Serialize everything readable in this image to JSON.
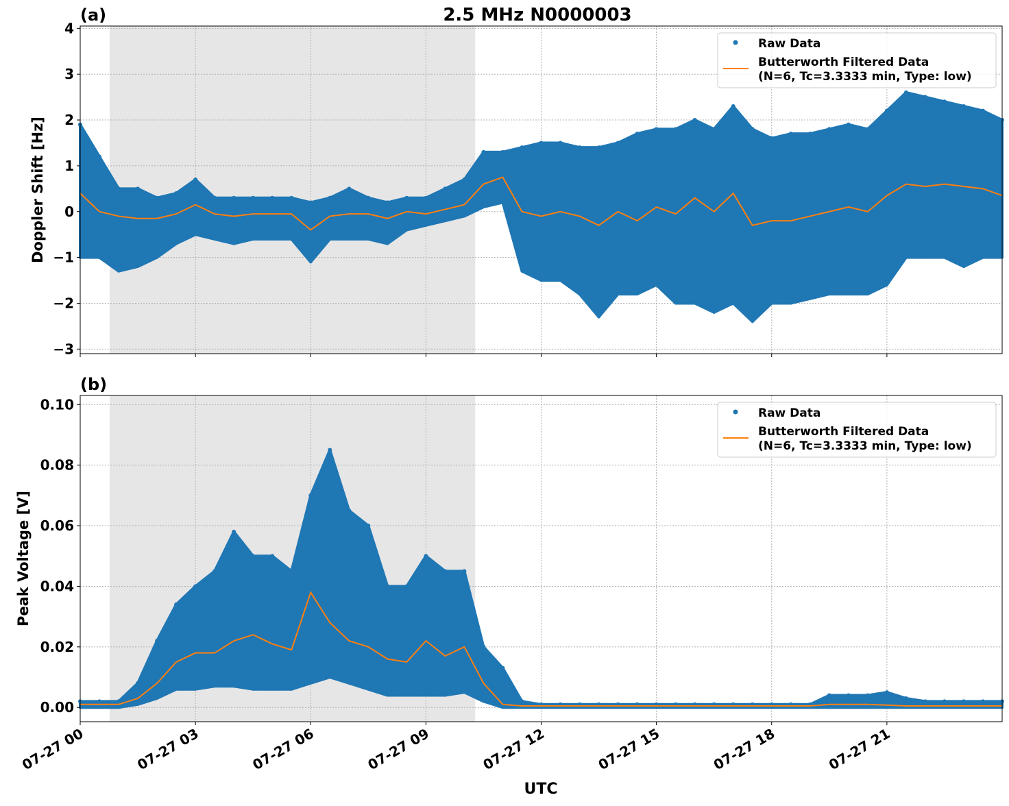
{
  "title": "2.5 MHz N0000003",
  "xlabel": "UTC",
  "x_tick_labels": [
    "07-27 00",
    "07-27 03",
    "07-27 06",
    "07-27 09",
    "07-27 12",
    "07-27 15",
    "07-27 18",
    "07-27 21"
  ],
  "x_ticks": [
    "07-27 00:00",
    "07-27 03:00",
    "07-27 06:00",
    "07-27 09:00",
    "07-27 12:00",
    "07-27 15:00",
    "07-27 18:00",
    "07-27 21:00"
  ],
  "xlim": [
    "07-27 00:00",
    "07-28 00:00"
  ],
  "legend": {
    "raw": "Raw Data",
    "filtered_line1": "Butterworth Filtered Data",
    "filtered_line2": "(N=6, Tc=3.3333 min, Type: low)",
    "placement": "top-right"
  },
  "colors": {
    "raw": "#1f77b4",
    "filtered": "#ff7f0e",
    "shade": "#e6e6e6",
    "grid": "#b0b0b0"
  },
  "chart_data": [
    {
      "type": "scatter",
      "panel_label": "(a)",
      "ylabel": "Doppler Shift [Hz]",
      "ylim": [
        -3.1,
        4.05
      ],
      "y_ticks": [
        -3,
        -2,
        -1,
        0,
        1,
        2,
        3,
        4
      ],
      "y_tick_labels": [
        "−3",
        "−2",
        "−1",
        "0",
        "1",
        "2",
        "3",
        "4"
      ],
      "grid": true,
      "shaded_span": [
        "07-27 00:46",
        "07-27 10:17"
      ],
      "x": [
        "00:00",
        "00:30",
        "01:00",
        "01:30",
        "02:00",
        "02:30",
        "03:00",
        "03:30",
        "04:00",
        "04:30",
        "05:00",
        "05:30",
        "06:00",
        "06:30",
        "07:00",
        "07:30",
        "08:00",
        "08:30",
        "09:00",
        "09:30",
        "10:00",
        "10:30",
        "11:00",
        "11:30",
        "12:00",
        "12:30",
        "13:00",
        "13:30",
        "14:00",
        "14:30",
        "15:00",
        "15:30",
        "16:00",
        "16:30",
        "17:00",
        "17:30",
        "18:00",
        "18:30",
        "19:00",
        "19:30",
        "20:00",
        "20:30",
        "21:00",
        "21:30",
        "22:00",
        "22:30",
        "23:00",
        "23:30",
        "24:00"
      ],
      "series": [
        {
          "name": "Raw Data",
          "kind": "scatter-range",
          "min": [
            -1.0,
            -1.0,
            -1.3,
            -1.2,
            -1.0,
            -0.7,
            -0.5,
            -0.6,
            -0.7,
            -0.6,
            -0.6,
            -0.6,
            -1.1,
            -0.6,
            -0.6,
            -0.6,
            -0.7,
            -0.4,
            -0.3,
            -0.2,
            -0.1,
            0.1,
            0.2,
            -1.3,
            -1.5,
            -1.5,
            -1.8,
            -2.3,
            -1.8,
            -1.8,
            -1.6,
            -2.0,
            -2.0,
            -2.2,
            -2.0,
            -2.4,
            -2.0,
            -2.0,
            -1.9,
            -1.8,
            -1.8,
            -1.8,
            -1.6,
            -1.0,
            -1.0,
            -1.0,
            -1.2,
            -1.0,
            -1.0
          ],
          "max": [
            1.9,
            1.2,
            0.5,
            0.5,
            0.3,
            0.4,
            0.7,
            0.3,
            0.3,
            0.3,
            0.3,
            0.3,
            0.2,
            0.3,
            0.5,
            0.3,
            0.2,
            0.3,
            0.3,
            0.5,
            0.7,
            1.3,
            1.3,
            1.4,
            1.5,
            1.5,
            1.4,
            1.4,
            1.5,
            1.7,
            1.8,
            1.8,
            2.0,
            1.8,
            2.3,
            1.8,
            1.6,
            1.7,
            1.7,
            1.8,
            1.9,
            1.8,
            2.2,
            2.6,
            2.5,
            2.4,
            2.3,
            2.2,
            2.0
          ]
        },
        {
          "name": "Butterworth Filtered Data",
          "kind": "line",
          "values": [
            0.4,
            0.0,
            -0.1,
            -0.15,
            -0.15,
            -0.05,
            0.15,
            -0.05,
            -0.1,
            -0.05,
            -0.05,
            -0.05,
            -0.4,
            -0.1,
            -0.05,
            -0.05,
            -0.15,
            0.0,
            -0.05,
            0.05,
            0.15,
            0.6,
            0.75,
            0.0,
            -0.1,
            0.0,
            -0.1,
            -0.3,
            0.0,
            -0.2,
            0.1,
            -0.05,
            0.3,
            0.0,
            0.4,
            -0.3,
            -0.2,
            -0.2,
            -0.1,
            0.0,
            0.1,
            0.0,
            0.35,
            0.6,
            0.55,
            0.6,
            0.55,
            0.5,
            0.35
          ]
        }
      ]
    },
    {
      "type": "scatter",
      "panel_label": "(b)",
      "ylabel": "Peak Voltage [V]",
      "ylim": [
        -0.0047,
        0.103
      ],
      "y_ticks": [
        0,
        0.02,
        0.04,
        0.06,
        0.08,
        0.1
      ],
      "y_tick_labels": [
        "0.00",
        "0.02",
        "0.04",
        "0.06",
        "0.08",
        "0.10"
      ],
      "grid": true,
      "shaded_span": [
        "07-27 00:46",
        "07-27 10:17"
      ],
      "x": [
        "00:00",
        "00:30",
        "01:00",
        "01:30",
        "02:00",
        "02:30",
        "03:00",
        "03:30",
        "04:00",
        "04:30",
        "05:00",
        "05:30",
        "06:00",
        "06:30",
        "07:00",
        "07:30",
        "08:00",
        "08:30",
        "09:00",
        "09:30",
        "10:00",
        "10:30",
        "11:00",
        "11:30",
        "12:00",
        "12:30",
        "13:00",
        "13:30",
        "14:00",
        "14:30",
        "15:00",
        "15:30",
        "16:00",
        "16:30",
        "17:00",
        "17:30",
        "18:00",
        "18:30",
        "19:00",
        "19:30",
        "20:00",
        "20:30",
        "21:00",
        "21:30",
        "22:00",
        "22:30",
        "23:00",
        "23:30",
        "24:00"
      ],
      "series": [
        {
          "name": "Raw Data",
          "kind": "scatter-range",
          "min": [
            0,
            0,
            0,
            0.001,
            0.003,
            0.006,
            0.006,
            0.007,
            0.007,
            0.006,
            0.006,
            0.006,
            0.008,
            0.01,
            0.008,
            0.006,
            0.004,
            0.004,
            0.004,
            0.004,
            0.005,
            0.002,
            0,
            0,
            0,
            0,
            0,
            0,
            0,
            0,
            0,
            0,
            0,
            0,
            0,
            0,
            0,
            0,
            0,
            0,
            0,
            0,
            0,
            0,
            0,
            0,
            0,
            0,
            0
          ],
          "max": [
            0.002,
            0.002,
            0.002,
            0.008,
            0.022,
            0.034,
            0.04,
            0.045,
            0.058,
            0.05,
            0.05,
            0.045,
            0.07,
            0.085,
            0.065,
            0.06,
            0.04,
            0.04,
            0.05,
            0.045,
            0.045,
            0.02,
            0.013,
            0.002,
            0.001,
            0.001,
            0.001,
            0.001,
            0.001,
            0.001,
            0.001,
            0.001,
            0.001,
            0.001,
            0.001,
            0.001,
            0.001,
            0.001,
            0.001,
            0.004,
            0.004,
            0.004,
            0.005,
            0.003,
            0.002,
            0.002,
            0.002,
            0.002,
            0.002
          ]
        },
        {
          "name": "Butterworth Filtered Data",
          "kind": "line",
          "values": [
            0.001,
            0.001,
            0.001,
            0.003,
            0.008,
            0.015,
            0.018,
            0.018,
            0.022,
            0.024,
            0.021,
            0.019,
            0.038,
            0.028,
            0.022,
            0.02,
            0.016,
            0.015,
            0.022,
            0.017,
            0.02,
            0.008,
            0.001,
            0.0005,
            0.0005,
            0.0005,
            0.0005,
            0.0005,
            0.0005,
            0.0005,
            0.0005,
            0.0005,
            0.0005,
            0.0005,
            0.0005,
            0.0005,
            0.0005,
            0.0005,
            0.0005,
            0.001,
            0.001,
            0.001,
            0.0008,
            0.0005,
            0.0005,
            0.0005,
            0.0005,
            0.0005,
            0.0005
          ]
        }
      ]
    }
  ]
}
